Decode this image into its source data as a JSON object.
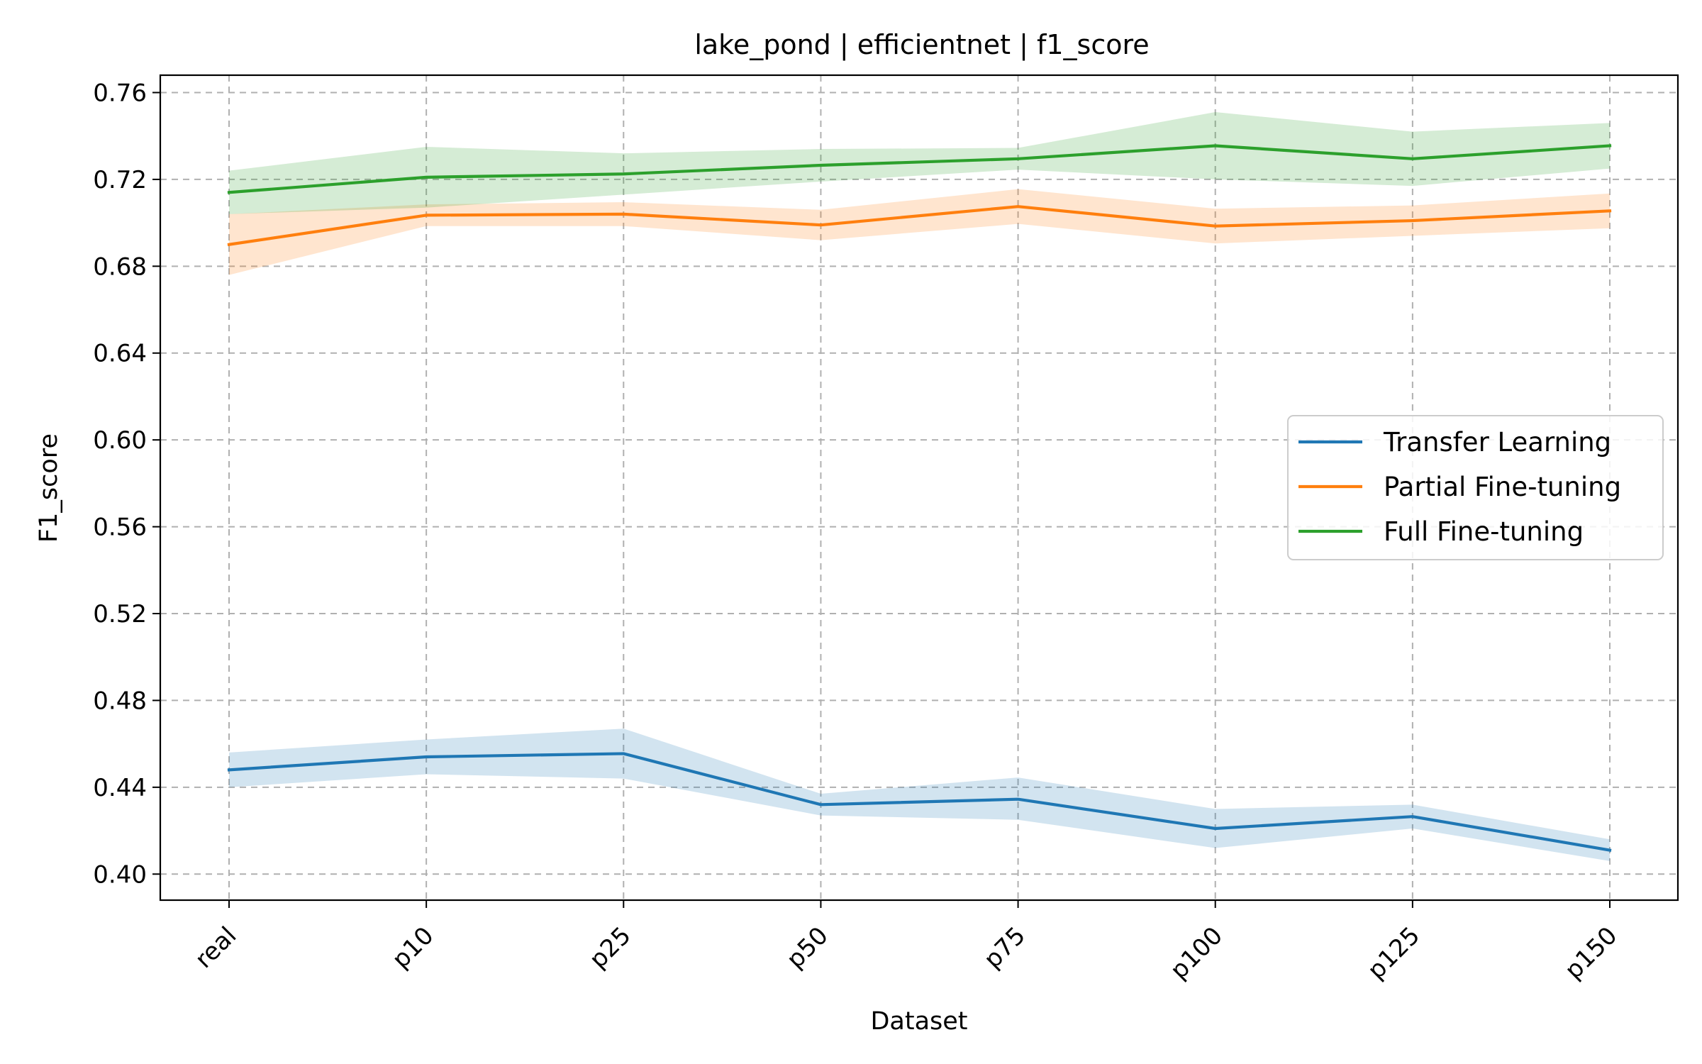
{
  "chart_data": {
    "type": "line",
    "title": "lake_pond | efficientnet | f1_score",
    "xlabel": "Dataset",
    "ylabel": "F1_score",
    "categories": [
      "real",
      "p10",
      "p25",
      "p50",
      "p75",
      "p100",
      "p125",
      "p150"
    ],
    "yticks": [
      "0.40",
      "0.44",
      "0.48",
      "0.52",
      "0.56",
      "0.60",
      "0.64",
      "0.68",
      "0.72",
      "0.76"
    ],
    "ylim": [
      0.388,
      0.768
    ],
    "grid": true,
    "legend_position": "center-right",
    "series": [
      {
        "name": "Transfer Learning",
        "color": "#1f77b4",
        "values": [
          0.448,
          0.454,
          0.4555,
          0.432,
          0.4345,
          0.421,
          0.4265,
          0.411
        ],
        "lower": [
          0.44,
          0.446,
          0.444,
          0.427,
          0.425,
          0.412,
          0.421,
          0.406
        ],
        "upper": [
          0.456,
          0.462,
          0.467,
          0.437,
          0.4445,
          0.43,
          0.432,
          0.416
        ]
      },
      {
        "name": "Partial Fine-tuning",
        "color": "#ff7f0e",
        "values": [
          0.69,
          0.7035,
          0.704,
          0.699,
          0.7075,
          0.6985,
          0.701,
          0.7055
        ],
        "lower": [
          0.676,
          0.6985,
          0.6985,
          0.692,
          0.6995,
          0.6905,
          0.694,
          0.6975
        ],
        "upper": [
          0.704,
          0.7085,
          0.7095,
          0.706,
          0.7155,
          0.7065,
          0.708,
          0.7135
        ]
      },
      {
        "name": "Full Fine-tuning",
        "color": "#2ca02c",
        "values": [
          0.714,
          0.721,
          0.7225,
          0.7265,
          0.7295,
          0.7355,
          0.7295,
          0.7355
        ],
        "lower": [
          0.704,
          0.707,
          0.713,
          0.719,
          0.7245,
          0.72,
          0.717,
          0.725
        ],
        "upper": [
          0.724,
          0.735,
          0.732,
          0.734,
          0.7345,
          0.751,
          0.742,
          0.746
        ]
      }
    ]
  }
}
